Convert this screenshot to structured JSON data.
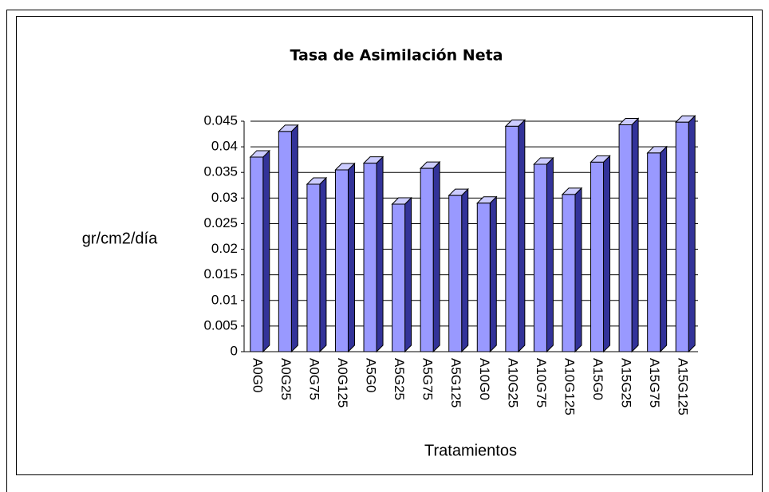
{
  "chart_data": {
    "type": "bar",
    "title": "Tasa de Asimilación Neta",
    "x_label": "Tratamientos",
    "y_label": "gr/cm2/día",
    "categories": [
      "A0G0",
      "A0G25",
      "A0G75",
      "A0G125",
      "A5G0",
      "A5G25",
      "A5G75",
      "A5G125",
      "A10G0",
      "A10G25",
      "A10G75",
      "A10G125",
      "A15G0",
      "A15G25",
      "A15G75",
      "A15G125"
    ],
    "values": [
      0.038,
      0.043,
      0.0327,
      0.0355,
      0.0368,
      0.0288,
      0.0358,
      0.0305,
      0.029,
      0.044,
      0.0366,
      0.0307,
      0.037,
      0.0443,
      0.0388,
      0.0448
    ],
    "color": "#9999ff",
    "ylim": [
      0,
      0.045
    ],
    "yticks": [
      0,
      0.005,
      0.01,
      0.015,
      0.02,
      0.025,
      0.03,
      0.035,
      0.04,
      0.045
    ],
    "grid": true
  }
}
